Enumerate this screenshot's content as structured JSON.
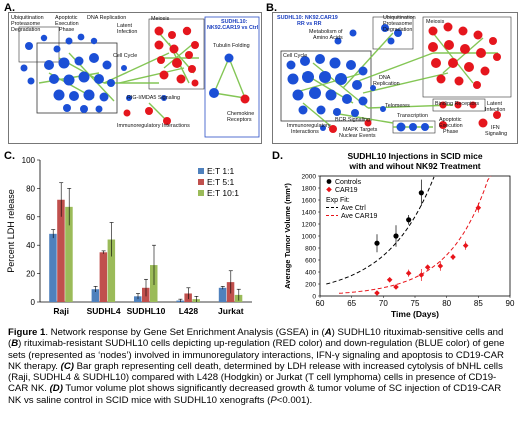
{
  "panels": {
    "A": {
      "letter": "A.",
      "labels": {
        "ubiquitination": "Ubiquitination Proteasome Degradation",
        "apoptotic_1": "Apoptotic",
        "apoptotic_2": "Execution",
        "apoptotic_3": "Phase",
        "dna_replication": "DNA Replication",
        "latent_infection_1": "Latent",
        "latent_infection_2": "Infection",
        "cell_cycle": "Cell Cycle",
        "rig_i": "RIG-I/MDA5 Signaling",
        "immuno": "Immunoregulatory Interactions",
        "meiosis": "Meiosis",
        "sudhl10_1": "SUDHL10:",
        "sudhl10_2": "NK92.CAR19 vs Ctrl",
        "tubulin": "Tubulin Folding",
        "chemokine_1": "Chemokine",
        "chemokine_2": "Receptors"
      }
    },
    "B": {
      "letter": "B.",
      "labels": {
        "sudhl10_title_1": "SUDHL10: NK92.CAR19",
        "sudhl10_title_2": "RR vs RR",
        "metabolism_1": "Metabolism of",
        "metabolism_2": "Amino Acids",
        "ubiquitination": "Ubiquitination Proteasome Degradation",
        "meiosis": "Meiosis",
        "cell_cycle": "Cell Cycle",
        "dna_1": "DNA",
        "dna_2": "Replication",
        "telomeres": "Telomeres",
        "binding_receptors": "Binding Receptors",
        "latent_1": "Latent",
        "latent_2": "Infection",
        "immunoregulatory_1": "Immunoregulatory",
        "immunoregulatory_2": "Interactions",
        "bcr": "BCR Signaling",
        "mapk_1": "MAPK Targets",
        "mapk_2": "Nuclear Events",
        "transcription": "Transcription",
        "apoptotic_1": "Apoptotic",
        "apoptotic_2": "Execution",
        "apoptotic_3": "Phase",
        "ifn_1": "IFN",
        "ifn_2": "Signaling"
      }
    },
    "C": {
      "letter": "C."
    },
    "D": {
      "letter": "D."
    }
  },
  "chart_data": [
    {
      "type": "bar",
      "panel": "C",
      "ylabel": "Percent LDH release",
      "ylim": [
        0,
        100
      ],
      "yticks": [
        0,
        20,
        40,
        60,
        80,
        100
      ],
      "categories": [
        "Raji",
        "SUDHL4",
        "SUDHL10",
        "L428",
        "Jurkat"
      ],
      "series": [
        {
          "name": "E:T 1:1",
          "color": "#4f81bd",
          "values": [
            48,
            9,
            4,
            1,
            10
          ],
          "errors": [
            3,
            2,
            2,
            1,
            1
          ]
        },
        {
          "name": "E:T 5:1",
          "color": "#c0504d",
          "values": [
            72,
            35,
            10,
            6,
            14
          ],
          "errors": [
            12,
            1,
            6,
            4,
            8
          ]
        },
        {
          "name": "E:T 10:1",
          "color": "#9bbb59",
          "values": [
            67,
            44,
            26,
            2,
            5
          ],
          "errors": [
            13,
            12,
            14,
            2,
            4
          ]
        }
      ],
      "legend_position": "top-right"
    },
    {
      "type": "scatter",
      "panel": "D",
      "title": "SUDHL10 Injections in SCID mice",
      "subtitle": "with and wihout NK92 Treatment",
      "xlabel": "Time (Days)",
      "ylabel": "Average Tumor Volume (mm³)",
      "xlim": [
        60,
        90
      ],
      "xticks": [
        60,
        65,
        70,
        75,
        80,
        85,
        90
      ],
      "ylim": [
        0,
        2000
      ],
      "yticks": [
        0,
        200,
        400,
        600,
        800,
        1000,
        1200,
        1400,
        1600,
        1800,
        2000
      ],
      "series": [
        {
          "name": "Controls",
          "color": "#000000",
          "marker": "circle",
          "x": [
            69,
            72,
            74,
            76
          ],
          "y": [
            880,
            1000,
            1270,
            1720
          ],
          "errors": [
            150,
            180,
            80,
            220
          ]
        },
        {
          "name": "CAR19",
          "color": "#e8141a",
          "marker": "diamond",
          "x": [
            69,
            71,
            72,
            74,
            76,
            77,
            79,
            81,
            83,
            85
          ],
          "y": [
            50,
            270,
            150,
            380,
            350,
            480,
            500,
            650,
            840,
            1470
          ],
          "errors": [
            40,
            40,
            30,
            60,
            100,
            40,
            80,
            50,
            70,
            80
          ]
        }
      ],
      "fit_legend": {
        "title": "Exp Fit:",
        "lines": [
          {
            "name": "Ave Ctrl",
            "color": "#000000",
            "style": "dashed"
          },
          {
            "name": "Ave CAR19",
            "color": "#e8141a",
            "style": "dashed"
          }
        ]
      },
      "legend_position": "top-left"
    }
  ],
  "caption": {
    "s1": "Figure 1",
    "s2": ". Network response by Gene Set Enrichment Analysis (GSEA) in (",
    "s3": "A",
    "s4": ") SUDHL10 rituximab-sensitive cells and (",
    "s5": "B",
    "s6": ") rituximab-resistant SUDHL10 cells depicting up-regulation (RED color) and down-regulation (BLUE color) of gene sets (represented as ‘nodes’) involved in immunoregulatory interactions, IFN-γ signaling and apoptosis to CD19-CAR NK therapy. ",
    "s7": "(C)",
    "s8": " Bar graph representing cell death, determined by LDH release with increased cytolysis of bNHL cells (Raji, SUDHL4 & SUDHL10) compared with L428 (Hodgkin) or Jurkat (T cell lymphoma) cells in presence of CD19-CAR NK. ",
    "s9": "(D)",
    "s10": " Tumor volume plot shows significantly decreased growth & tumor volume of SC injection of CD19-CAR NK vs saline control in SCID mice with SUDHL10 xenografts (",
    "s11": "P",
    "s12": "<0.001)."
  }
}
